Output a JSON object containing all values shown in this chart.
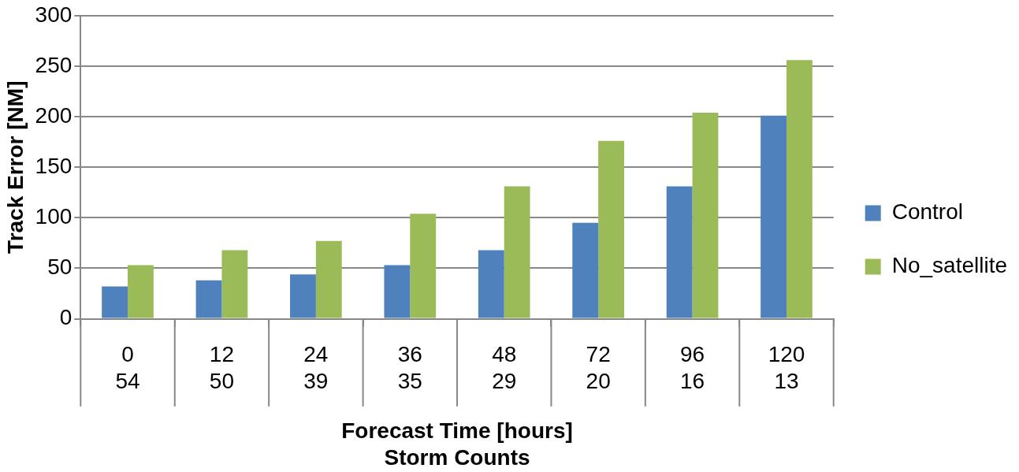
{
  "chart_data": {
    "type": "bar",
    "xlabel": "Forecast Time [hours]\nStorm Counts",
    "ylabel": "Track Error [NM]",
    "categories": [
      "0\n54",
      "12\n50",
      "24\n39",
      "36\n35",
      "48\n29",
      "72\n20",
      "96\n16",
      "120\n13"
    ],
    "series": [
      {
        "name": "Control",
        "color": "#4f81bd",
        "values": [
          32,
          38,
          44,
          53,
          68,
          95,
          131,
          201
        ]
      },
      {
        "name": "No_satellite",
        "color": "#9bbb59",
        "values": [
          53,
          68,
          77,
          104,
          131,
          176,
          204,
          256
        ]
      }
    ],
    "ylim": [
      0,
      300
    ],
    "yticks": [
      0,
      50,
      100,
      150,
      200,
      250,
      300
    ],
    "grid": "y",
    "legend": "right"
  }
}
